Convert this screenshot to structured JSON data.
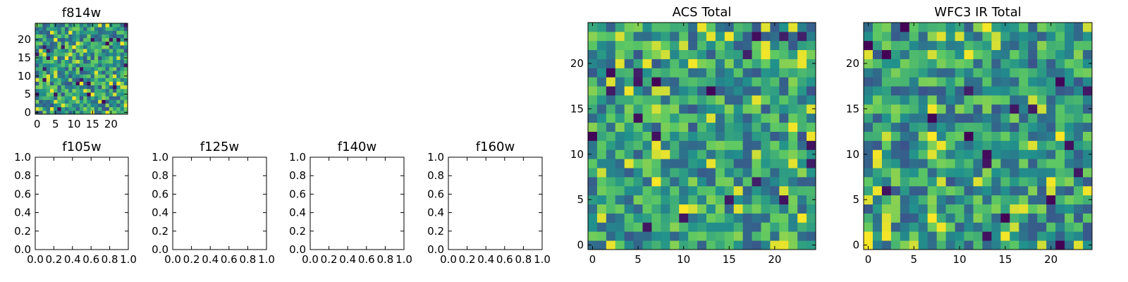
{
  "colormap": [
    "#440154",
    "#3b528b",
    "#21918c",
    "#5ec962",
    "#fde725"
  ],
  "chart_data": [
    {
      "id": "f814w",
      "type": "heatmap",
      "title": "f814w",
      "grid_size": 25,
      "xlim": [
        -0.5,
        24.5
      ],
      "ylim": [
        -0.5,
        24.5
      ],
      "xticks": [
        0,
        5,
        10,
        15,
        20
      ],
      "yticks": [
        0,
        5,
        10,
        15,
        20
      ],
      "value_range": [
        0,
        1
      ],
      "seed": 814
    },
    {
      "id": "f105w",
      "type": "heatmap",
      "title": "f105w",
      "empty": true,
      "xlim": [
        0,
        1
      ],
      "ylim": [
        0,
        1
      ],
      "xticks": [
        0.0,
        0.2,
        0.4,
        0.6,
        0.8,
        1.0
      ],
      "yticks": [
        0.0,
        0.2,
        0.4,
        0.6,
        0.8,
        1.0
      ]
    },
    {
      "id": "f125w",
      "type": "heatmap",
      "title": "f125w",
      "empty": true,
      "xlim": [
        0,
        1
      ],
      "ylim": [
        0,
        1
      ],
      "xticks": [
        0.0,
        0.2,
        0.4,
        0.6,
        0.8,
        1.0
      ],
      "yticks": [
        0.0,
        0.2,
        0.4,
        0.6,
        0.8,
        1.0
      ]
    },
    {
      "id": "f140w",
      "type": "heatmap",
      "title": "f140w",
      "empty": true,
      "xlim": [
        0,
        1
      ],
      "ylim": [
        0,
        1
      ],
      "xticks": [
        0.0,
        0.2,
        0.4,
        0.6,
        0.8,
        1.0
      ],
      "yticks": [
        0.0,
        0.2,
        0.4,
        0.6,
        0.8,
        1.0
      ]
    },
    {
      "id": "f160w",
      "type": "heatmap",
      "title": "f160w",
      "empty": true,
      "xlim": [
        0,
        1
      ],
      "ylim": [
        0,
        1
      ],
      "xticks": [
        0.0,
        0.2,
        0.4,
        0.6,
        0.8,
        1.0
      ],
      "yticks": [
        0.0,
        0.2,
        0.4,
        0.6,
        0.8,
        1.0
      ]
    },
    {
      "id": "acs_total",
      "type": "heatmap",
      "title": "ACS Total",
      "grid_size": 25,
      "xlim": [
        -0.5,
        24.5
      ],
      "ylim": [
        -0.5,
        24.5
      ],
      "xticks": [
        0,
        5,
        10,
        15,
        20
      ],
      "yticks": [
        0,
        5,
        10,
        15,
        20
      ],
      "value_range": [
        0,
        1
      ],
      "seed": 1001
    },
    {
      "id": "wfc3_ir_total",
      "type": "heatmap",
      "title": "WFC3 IR Total",
      "grid_size": 25,
      "xlim": [
        -0.5,
        24.5
      ],
      "ylim": [
        -0.5,
        24.5
      ],
      "xticks": [
        0,
        5,
        10,
        15,
        20
      ],
      "yticks": [
        0,
        5,
        10,
        15,
        20
      ],
      "value_range": [
        0,
        1
      ],
      "seed": 2002
    }
  ]
}
